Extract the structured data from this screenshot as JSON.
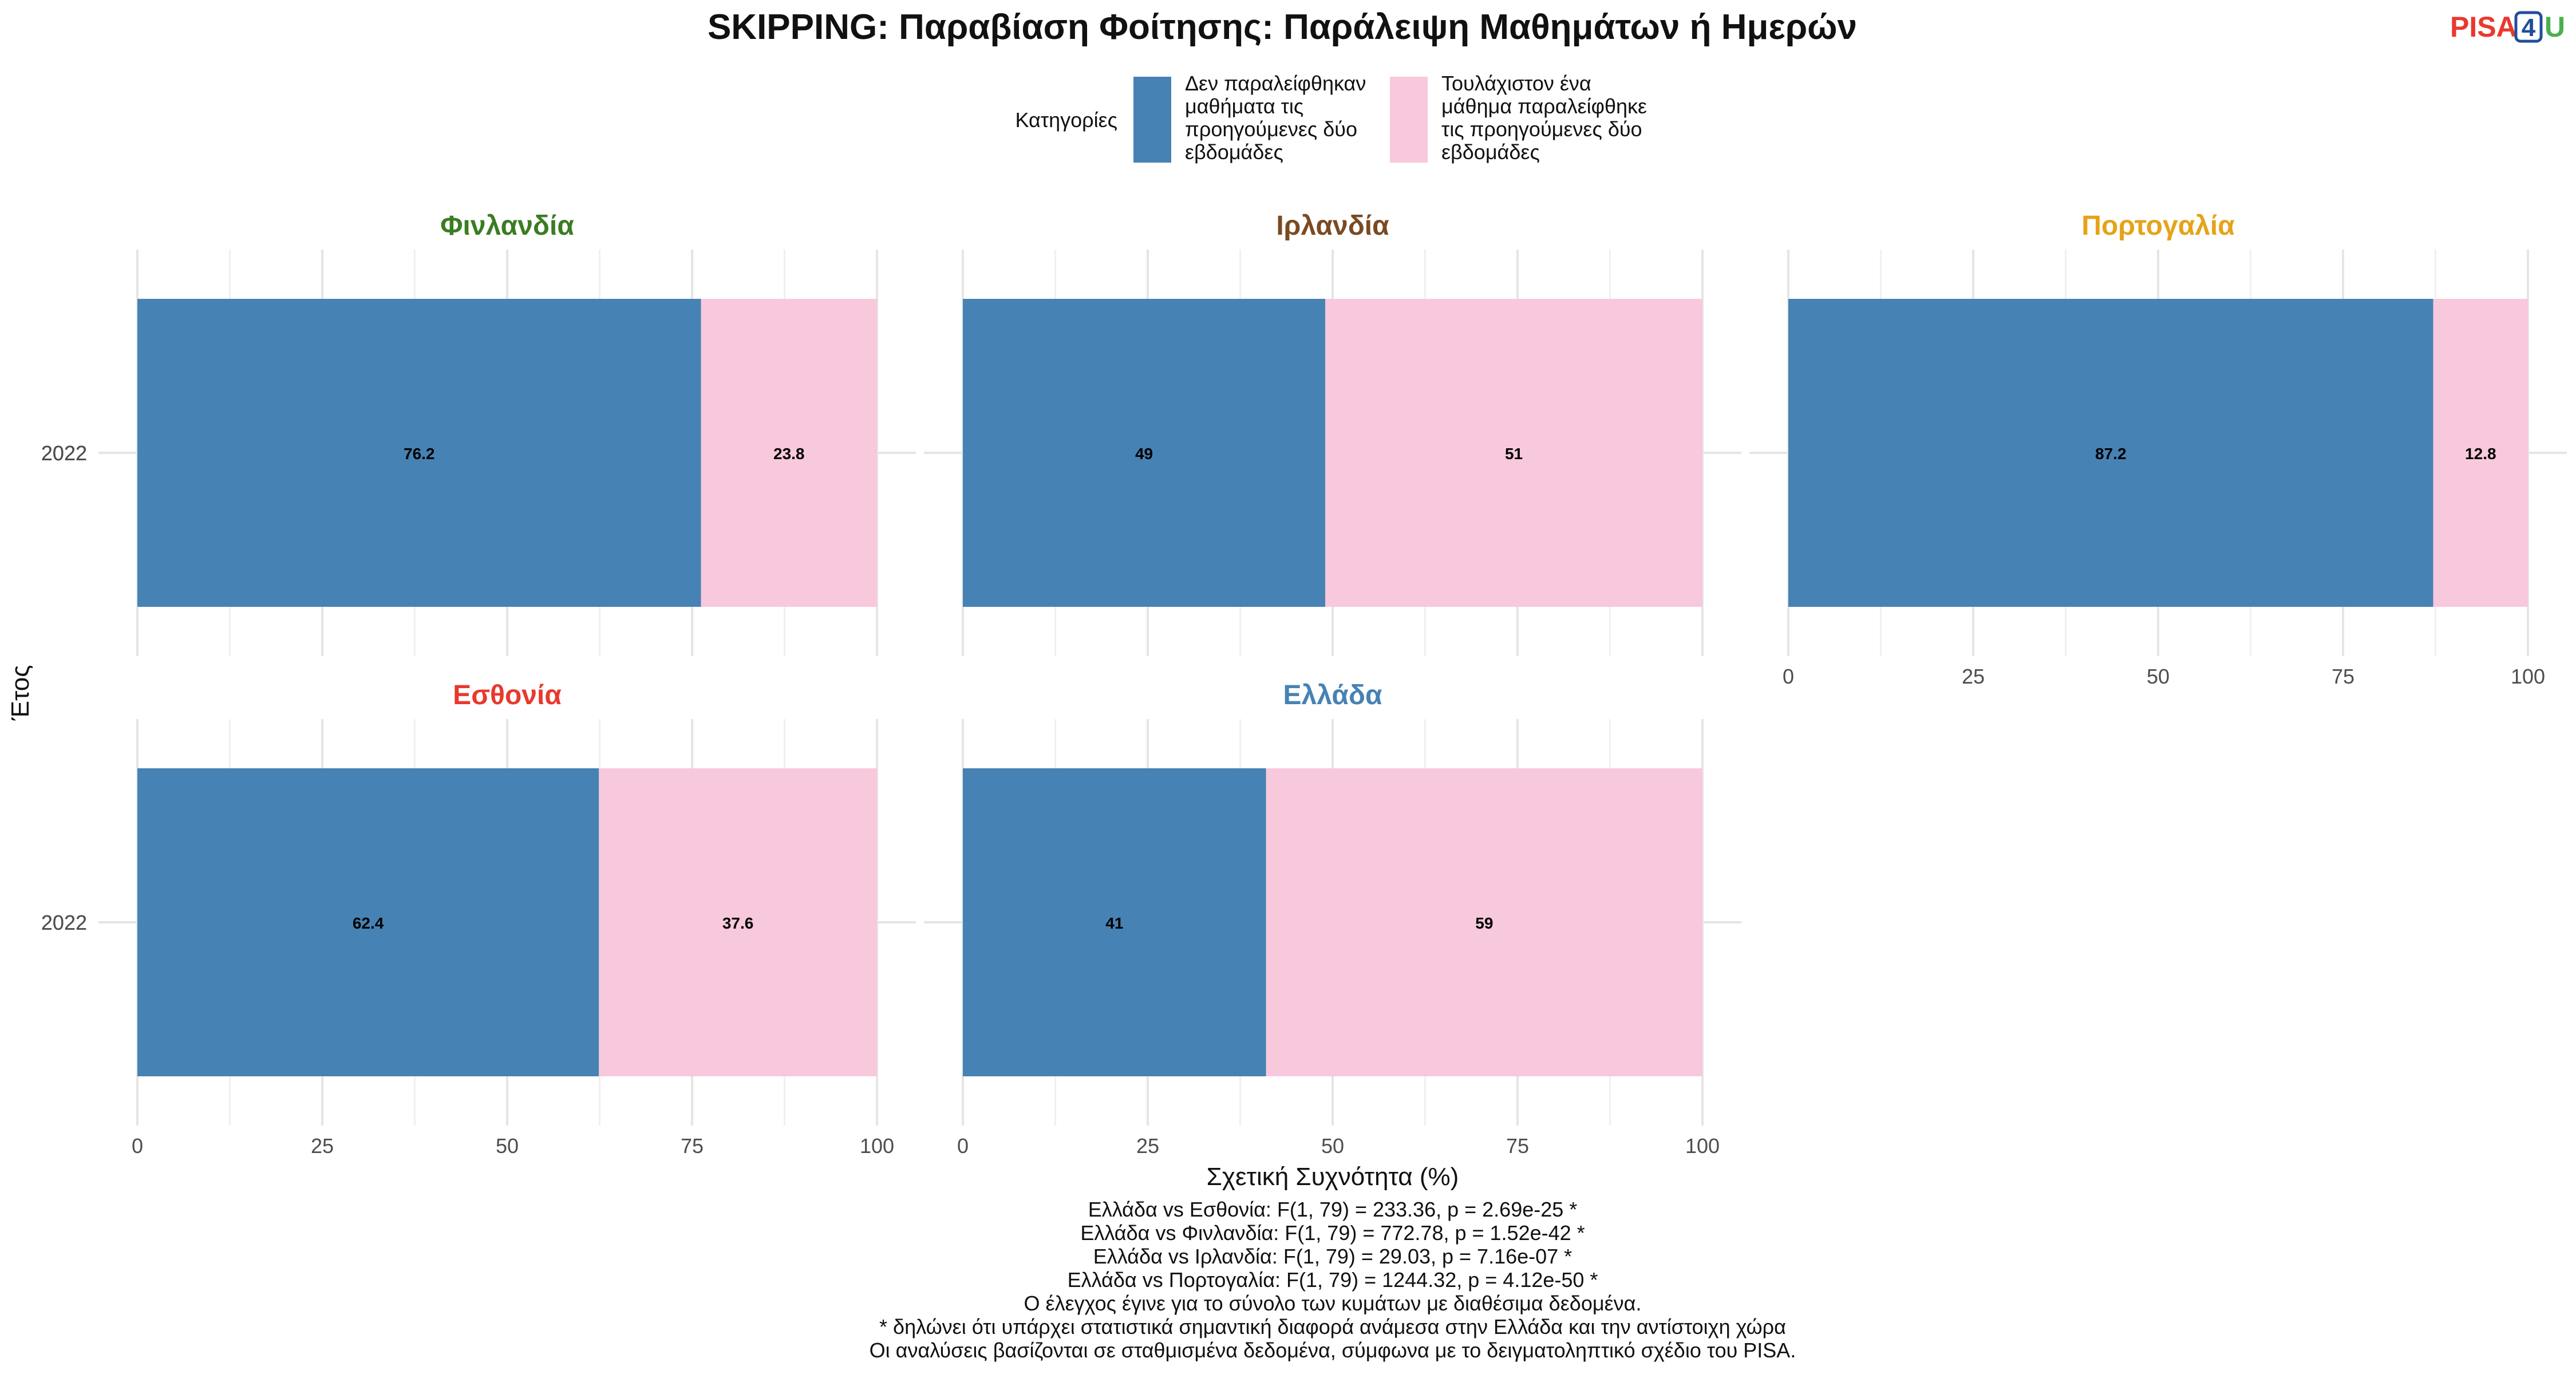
{
  "logo": {
    "text_a": "PISA",
    "text_b": "4",
    "text_c": "U"
  },
  "colors": {
    "series_a": "#4682B4",
    "series_b": "#F8C8DC",
    "finland": "#3A7D22",
    "ireland": "#7A4A22",
    "portugal": "#E6A318",
    "estonia": "#E8392E",
    "greece": "#4682B4",
    "logo_a": "#E8392E",
    "logo_b": "#1F4E9C",
    "logo_c": "#4CAF50"
  },
  "chart_data": {
    "type": "bar",
    "orientation": "horizontal-stacked",
    "title": "SKIPPING: Παραβίαση Φοίτησης: Παράλειψη Μαθημάτων ή Ημερών",
    "xlabel": "Σχετική Συχνότητα (%)",
    "ylabel": "Έτος",
    "xlim": [
      0,
      100
    ],
    "xticks": [
      0,
      25,
      50,
      75,
      100
    ],
    "grid": true,
    "legend": {
      "title": "Κατηγορίες",
      "position": "top",
      "entries": [
        [
          "Δεν παραλείφθηκαν",
          "μαθήματα τις",
          "προηγούμενες δύο",
          "εβδομάδες"
        ],
        [
          "Τουλάχιστον ένα",
          "μάθημα παραλείφθηκε",
          "τις προηγούμενες δύο",
          "εβδομάδες"
        ]
      ]
    },
    "panels": [
      {
        "country": "Φινλανδία",
        "color_key": "finland",
        "categories": [
          "2022"
        ],
        "values": [
          [
            76.2,
            23.8
          ]
        ],
        "labels": [
          [
            "76.2",
            "23.8"
          ]
        ]
      },
      {
        "country": "Ιρλανδία",
        "color_key": "ireland",
        "categories": [
          "2022"
        ],
        "values": [
          [
            49,
            51
          ]
        ],
        "labels": [
          [
            "49",
            "51"
          ]
        ]
      },
      {
        "country": "Πορτογαλία",
        "color_key": "portugal",
        "categories": [
          "2022"
        ],
        "values": [
          [
            87.2,
            12.8
          ]
        ],
        "labels": [
          [
            "87.2",
            "12.8"
          ]
        ]
      },
      {
        "country": "Εσθονία",
        "color_key": "estonia",
        "categories": [
          "2022"
        ],
        "values": [
          [
            62.4,
            37.6
          ]
        ],
        "labels": [
          [
            "62.4",
            "37.6"
          ]
        ]
      },
      {
        "country": "Ελλάδα",
        "color_key": "greece",
        "categories": [
          "2022"
        ],
        "values": [
          [
            41,
            59
          ]
        ],
        "labels": [
          [
            "41",
            "59"
          ]
        ]
      }
    ],
    "notes": [
      "Ελλάδα vs Εσθονία: F(1, 79) = 233.36, p = 2.69e-25 *",
      "Ελλάδα vs Φινλανδία: F(1, 79) = 772.78, p = 1.52e-42 *",
      "Ελλάδα vs Ιρλανδία: F(1, 79) = 29.03, p = 7.16e-07 *",
      "Ελλάδα vs Πορτογαλία: F(1, 79) = 1244.32, p = 4.12e-50 *",
      "Ο έλεγχος έγινε για το σύνολο των κυμάτων με διαθέσιμα δεδομένα.",
      "* δηλώνει ότι υπάρχει στατιστικά σημαντική διαφορά ανάμεσα στην Ελλάδα και την αντίστοιχη χώρα",
      "Οι αναλύσεις βασίζονται σε σταθμισμένα δεδομένα, σύμφωνα με το δειγματοληπτικό σχέδιο του PISA."
    ]
  }
}
